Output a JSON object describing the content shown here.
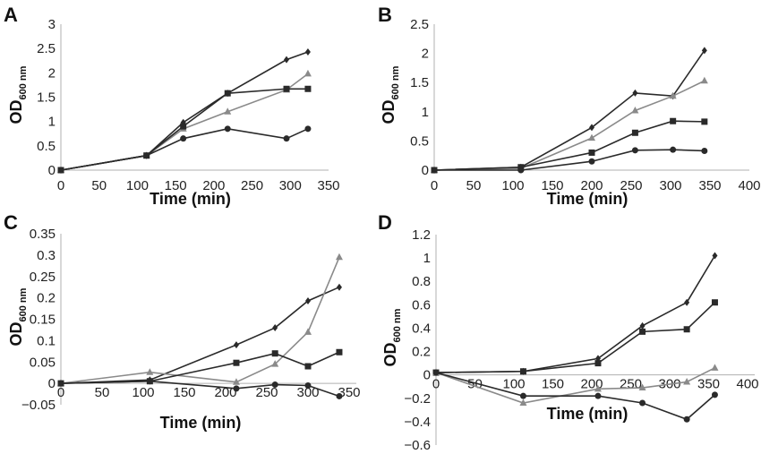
{
  "colors": {
    "dark": "#2a2a2a",
    "gray": "#8a8a8a",
    "axis": "#b0b0b0"
  },
  "chart_data": [
    {
      "panel": "A",
      "type": "line",
      "xlabel": "Time (min)",
      "ylabel_main": "OD",
      "ylabel_sub": "600 nm",
      "xlim": [
        0,
        350
      ],
      "ylim": [
        0,
        3
      ],
      "xticks": [
        0,
        50,
        100,
        150,
        200,
        250,
        300,
        350
      ],
      "yticks": [
        "0",
        "0.5",
        "1",
        "1.5",
        "2",
        "2.5",
        "3"
      ],
      "x": [
        0,
        112,
        160,
        218,
        295,
        323
      ],
      "series": [
        {
          "marker": "diamond",
          "color": "dark",
          "values": [
            0,
            0.3,
            0.98,
            1.58,
            2.27,
            2.43
          ]
        },
        {
          "marker": "triangle",
          "color": "gray",
          "values": [
            0,
            0.3,
            0.85,
            1.2,
            1.65,
            1.98
          ]
        },
        {
          "marker": "square",
          "color": "dark",
          "values": [
            0,
            0.3,
            0.9,
            1.58,
            1.67,
            1.67
          ]
        },
        {
          "marker": "circle",
          "color": "dark",
          "values": [
            0,
            0.3,
            0.65,
            0.85,
            0.65,
            0.85
          ]
        }
      ]
    },
    {
      "panel": "B",
      "type": "line",
      "xlabel": "Time (min)",
      "ylabel_main": "OD",
      "ylabel_sub": "600 nm",
      "xlim": [
        0,
        400
      ],
      "ylim": [
        0,
        2.5
      ],
      "xticks": [
        0,
        50,
        100,
        150,
        200,
        250,
        300,
        350,
        400
      ],
      "yticks": [
        "0",
        "0.5",
        "1",
        "1.5",
        "2",
        "2.5"
      ],
      "x": [
        0,
        110,
        200,
        255,
        303,
        343
      ],
      "series": [
        {
          "marker": "diamond",
          "color": "dark",
          "values": [
            0,
            0.05,
            0.73,
            1.32,
            1.27,
            2.05
          ]
        },
        {
          "marker": "triangle",
          "color": "gray",
          "values": [
            0,
            0.03,
            0.55,
            1.02,
            1.27,
            1.53
          ]
        },
        {
          "marker": "square",
          "color": "dark",
          "values": [
            0,
            0.05,
            0.3,
            0.64,
            0.84,
            0.83
          ]
        },
        {
          "marker": "circle",
          "color": "dark",
          "values": [
            0,
            0,
            0.15,
            0.34,
            0.35,
            0.33
          ]
        }
      ]
    },
    {
      "panel": "C",
      "type": "line",
      "xlabel": "Time (min)",
      "ylabel_main": "OD",
      "ylabel_sub": "600 nm",
      "xlim": [
        0,
        350
      ],
      "ylim": [
        -0.05,
        0.35
      ],
      "xticks": [
        0,
        50,
        100,
        150,
        200,
        250,
        300,
        350
      ],
      "yticks": [
        "−0.05",
        "0",
        "0.05",
        "0.1",
        "0.15",
        "0.2",
        "0.25",
        "0.3",
        "0.35"
      ],
      "x": [
        0,
        108,
        213,
        260,
        300,
        338
      ],
      "series": [
        {
          "marker": "diamond",
          "color": "dark",
          "values": [
            0,
            0.008,
            0.09,
            0.13,
            0.193,
            0.225
          ]
        },
        {
          "marker": "triangle",
          "color": "gray",
          "values": [
            0,
            0.026,
            0.003,
            0.045,
            0.12,
            0.295
          ]
        },
        {
          "marker": "square",
          "color": "dark",
          "values": [
            0,
            0.005,
            0.048,
            0.07,
            0.04,
            0.073
          ]
        },
        {
          "marker": "circle",
          "color": "dark",
          "values": [
            0,
            0.005,
            -0.012,
            -0.003,
            -0.005,
            -0.03
          ]
        }
      ]
    },
    {
      "panel": "D",
      "type": "line",
      "xlabel": "Time (min)",
      "ylabel_main": "OD",
      "ylabel_sub": "600 nm",
      "xlim": [
        0,
        400
      ],
      "ylim": [
        -0.6,
        1.2
      ],
      "xticks": [
        0,
        50,
        100,
        150,
        200,
        250,
        300,
        350,
        400
      ],
      "yticks": [
        "−0.6",
        "−0.4",
        "−0.2",
        "0",
        "0.2",
        "0.4",
        "0.6",
        "0.8",
        "1",
        "1.2"
      ],
      "x": [
        0,
        112,
        208,
        265,
        322,
        358
      ],
      "series": [
        {
          "marker": "diamond",
          "color": "dark",
          "values": [
            0.02,
            0.03,
            0.14,
            0.42,
            0.62,
            1.02
          ]
        },
        {
          "marker": "square",
          "color": "dark",
          "values": [
            0.02,
            0.03,
            0.1,
            0.37,
            0.39,
            0.62
          ]
        },
        {
          "marker": "triangle",
          "color": "gray",
          "values": [
            0.02,
            -0.24,
            -0.12,
            -0.11,
            -0.06,
            0.06
          ]
        },
        {
          "marker": "circle",
          "color": "dark",
          "values": [
            0.02,
            -0.18,
            -0.18,
            -0.24,
            -0.38,
            -0.17
          ]
        }
      ]
    }
  ]
}
